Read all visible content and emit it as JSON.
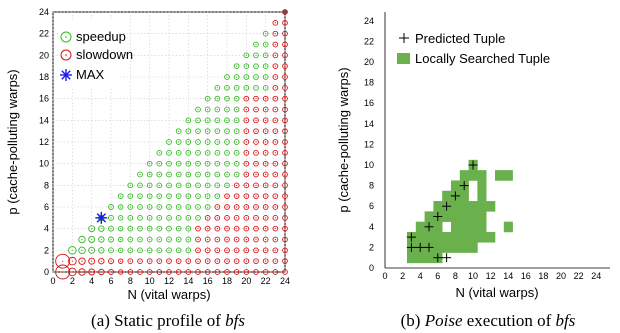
{
  "chart_data": [
    {
      "type": "scatter",
      "caption": {
        "prefix": "(a) Static profile of ",
        "emph": "bfs"
      },
      "xlabel": "N (vital warps)",
      "ylabel": "p (cache-polluting warps)",
      "xlim": [
        0,
        24
      ],
      "ylim": [
        0,
        24
      ],
      "xticks": [
        "0",
        "2",
        "4",
        "6",
        "8",
        "10",
        "12",
        "14",
        "16",
        "18",
        "20",
        "22",
        "24"
      ],
      "yticks": [
        "0",
        "2",
        "4",
        "6",
        "8",
        "10",
        "12",
        "14",
        "16",
        "18",
        "20",
        "22",
        "24"
      ],
      "legend": {
        "placement": "top-left",
        "items": [
          "speedup",
          "slowdown",
          "MAX"
        ]
      },
      "colors": {
        "speedup": "#33bb22",
        "slowdown": "#dd1111",
        "max": "#1a1aee"
      },
      "max_point": {
        "x": 5,
        "y": 5
      },
      "large_slowdown_points": [
        {
          "x": 1,
          "y": 0
        },
        {
          "x": 1,
          "y": 1
        }
      ],
      "valid_region": "p <= N",
      "slowdown_rule": "y <= 1 or x >= 23 or (x - y >= 11 and x >= 15) or (x >= 20 and y <= 16)"
    },
    {
      "type": "scatter",
      "caption": {
        "prefix": "(b) ",
        "emph": "Poise",
        "suffix": " execution of ",
        "emph2": "bfs"
      },
      "xlabel": "N (vital warps)",
      "ylabel": "p (cache-polluting warps)",
      "xlim": [
        0,
        24
      ],
      "ylim": [
        0,
        24
      ],
      "xticks": [
        "0",
        "2",
        "4",
        "6",
        "8",
        "10",
        "12",
        "14",
        "16",
        "18",
        "20",
        "22",
        "24"
      ],
      "yticks": [
        "0",
        "2",
        "4",
        "6",
        "8",
        "10",
        "12",
        "14",
        "16",
        "18",
        "20",
        "22",
        "24"
      ],
      "legend": {
        "placement": "top-left",
        "items": [
          "Predicted Tuple",
          "Locally Searched Tuple"
        ]
      },
      "colors": {
        "searched": "#6ab04c"
      },
      "searched": [
        [
          3,
          1
        ],
        [
          4,
          1
        ],
        [
          5,
          1
        ],
        [
          6,
          1
        ],
        [
          3,
          2
        ],
        [
          4,
          2
        ],
        [
          5,
          2
        ],
        [
          6,
          2
        ],
        [
          7,
          2
        ],
        [
          8,
          2
        ],
        [
          9,
          2
        ],
        [
          10,
          2
        ],
        [
          3,
          3
        ],
        [
          4,
          3
        ],
        [
          5,
          3
        ],
        [
          6,
          3
        ],
        [
          7,
          3
        ],
        [
          8,
          3
        ],
        [
          9,
          3
        ],
        [
          10,
          3
        ],
        [
          11,
          3
        ],
        [
          12,
          3
        ],
        [
          4,
          4
        ],
        [
          5,
          4
        ],
        [
          6,
          4
        ],
        [
          8,
          4
        ],
        [
          9,
          4
        ],
        [
          10,
          4
        ],
        [
          11,
          4
        ],
        [
          14,
          4
        ],
        [
          5,
          5
        ],
        [
          6,
          5
        ],
        [
          7,
          5
        ],
        [
          8,
          5
        ],
        [
          9,
          5
        ],
        [
          10,
          5
        ],
        [
          11,
          5
        ],
        [
          6,
          6
        ],
        [
          7,
          6
        ],
        [
          8,
          6
        ],
        [
          9,
          6
        ],
        [
          10,
          6
        ],
        [
          11,
          6
        ],
        [
          12,
          6
        ],
        [
          7,
          7
        ],
        [
          8,
          7
        ],
        [
          9,
          7
        ],
        [
          11,
          7
        ],
        [
          8,
          8
        ],
        [
          9,
          8
        ],
        [
          11,
          8
        ],
        [
          9,
          9
        ],
        [
          10,
          9
        ],
        [
          11,
          9
        ],
        [
          13,
          9
        ],
        [
          14,
          9
        ],
        [
          10,
          10
        ]
      ],
      "predicted": [
        [
          3,
          2
        ],
        [
          3,
          3
        ],
        [
          4,
          2
        ],
        [
          5,
          2
        ],
        [
          6,
          1
        ],
        [
          7,
          1
        ],
        [
          5,
          4
        ],
        [
          6,
          5
        ],
        [
          7,
          6
        ],
        [
          8,
          7
        ],
        [
          9,
          8
        ],
        [
          10,
          10
        ]
      ]
    }
  ]
}
